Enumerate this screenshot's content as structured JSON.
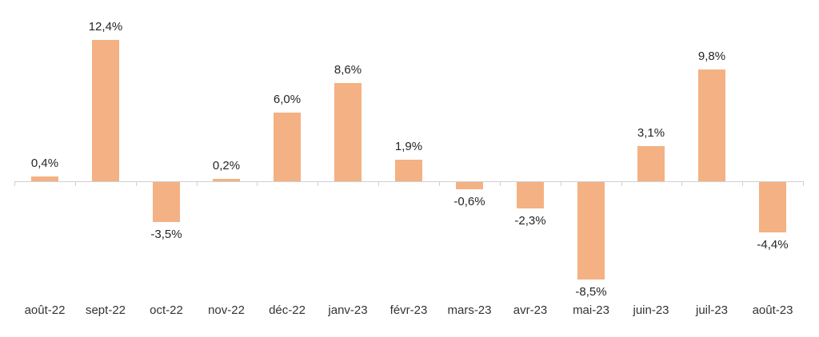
{
  "chart_data": {
    "type": "bar",
    "title": "",
    "xlabel": "",
    "ylabel": "",
    "categories": [
      "août-22",
      "sept-22",
      "oct-22",
      "nov-22",
      "déc-22",
      "janv-23",
      "févr-23",
      "mars-23",
      "avr-23",
      "mai-23",
      "juin-23",
      "juil-23",
      "août-23"
    ],
    "values": [
      0.4,
      12.4,
      -3.5,
      0.2,
      6.0,
      8.6,
      1.9,
      -0.6,
      -2.3,
      -8.5,
      3.1,
      9.8,
      -4.4
    ],
    "value_labels": [
      "0,4%",
      "12,4%",
      "-3,5%",
      "0,2%",
      "6,0%",
      "8,6%",
      "1,9%",
      "-0,6%",
      "-2,3%",
      "-8,5%",
      "3,1%",
      "9,8%",
      "-4,4%"
    ],
    "ylim": [
      -10,
      14
    ],
    "grid": false,
    "legend": false,
    "y_axis_visible": false,
    "data_labels_visible": true,
    "bar_color": "#F4B183",
    "axis_color": "#D0D0D0",
    "data_label_color": "#262626",
    "category_label_color": "#333333",
    "background_color": "#FFFFFF"
  }
}
